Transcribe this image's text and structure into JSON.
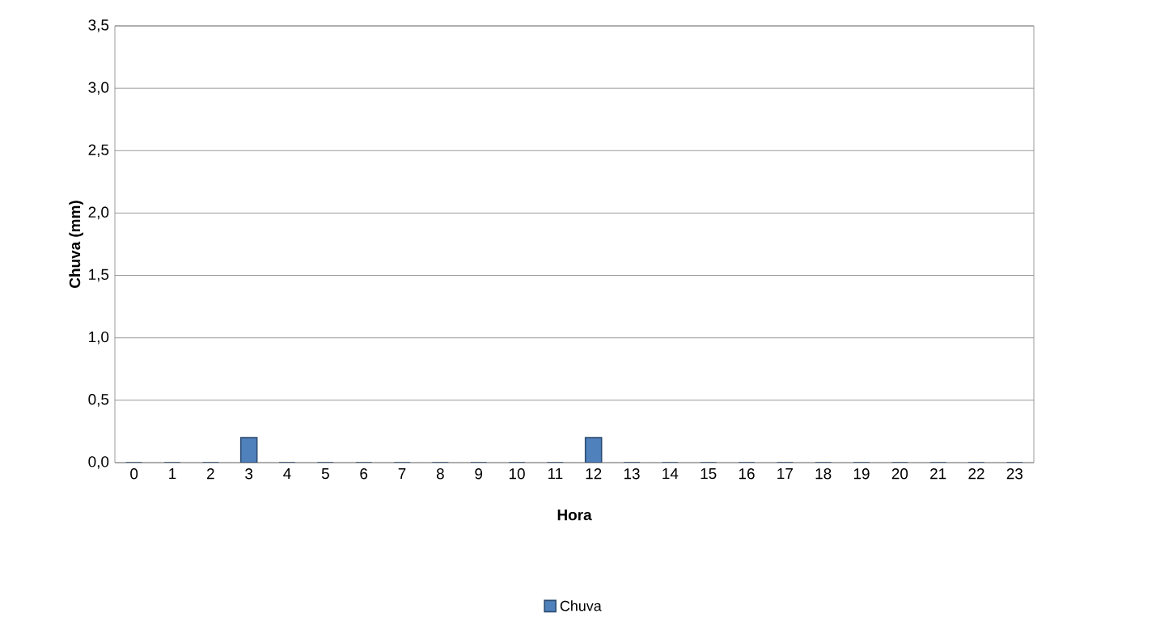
{
  "chart_data": {
    "type": "bar",
    "xlabel": "Hora",
    "ylabel": "Chuva (mm)",
    "categories": [
      "0",
      "1",
      "2",
      "3",
      "4",
      "5",
      "6",
      "7",
      "8",
      "9",
      "10",
      "11",
      "12",
      "13",
      "14",
      "15",
      "16",
      "17",
      "18",
      "19",
      "20",
      "21",
      "22",
      "23"
    ],
    "series": [
      {
        "name": "Chuva",
        "color": "#4f81bd",
        "values": [
          0,
          0,
          0,
          0.2,
          0,
          0,
          0,
          0,
          0,
          0,
          0,
          0,
          0.2,
          0,
          0,
          0,
          0,
          0,
          0,
          0,
          0,
          0,
          0,
          0
        ]
      }
    ],
    "ylim": [
      0,
      3.5
    ],
    "yticks": [
      {
        "value": 0,
        "label": "0,0"
      },
      {
        "value": 0.5,
        "label": "0,5"
      },
      {
        "value": 1,
        "label": "1,0"
      },
      {
        "value": 1.5,
        "label": "1,5"
      },
      {
        "value": 2,
        "label": "2,0"
      },
      {
        "value": 2.5,
        "label": "2,5"
      },
      {
        "value": 3,
        "label": "3,0"
      },
      {
        "value": 3.5,
        "label": "3,5"
      }
    ],
    "grid": "y",
    "legend": "bottom"
  }
}
